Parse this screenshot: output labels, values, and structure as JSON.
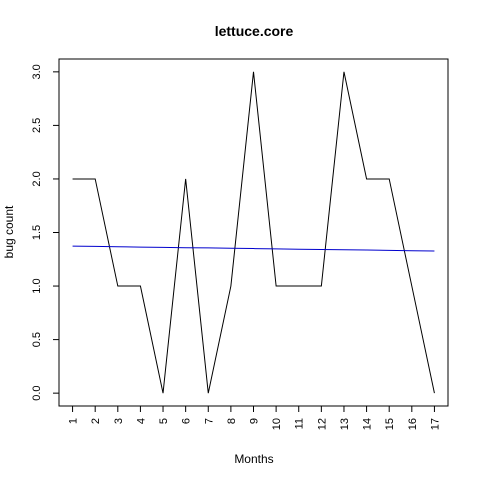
{
  "chart_data": {
    "type": "line",
    "title": "lettuce.core",
    "xlabel": "Months",
    "ylabel": "bug count",
    "x": [
      1,
      2,
      3,
      4,
      5,
      6,
      7,
      8,
      9,
      10,
      11,
      12,
      13,
      14,
      15,
      16,
      17
    ],
    "x_tick_labels": [
      "1",
      "2",
      "3",
      "4",
      "5",
      "6",
      "7",
      "8",
      "9",
      "10",
      "11",
      "12",
      "13",
      "14",
      "15",
      "16",
      "17"
    ],
    "y_tick_values": [
      0.0,
      0.5,
      1.0,
      1.5,
      2.0,
      2.5,
      3.0
    ],
    "y_tick_labels": [
      "0.0",
      "0.5",
      "1.0",
      "1.5",
      "2.0",
      "2.5",
      "3.0"
    ],
    "xlim": [
      0.4,
      17.6
    ],
    "ylim": [
      -0.12,
      3.12
    ],
    "grid": false,
    "legend": "none",
    "series": [
      {
        "color": "#000000",
        "values": [
          2,
          2,
          1,
          1,
          0,
          2,
          0,
          1,
          3,
          1,
          1,
          1,
          3,
          2,
          2,
          1,
          0
        ]
      },
      {
        "color": "#0000cd",
        "kind": "trend",
        "values": [
          1.373,
          1.37,
          1.367,
          1.364,
          1.361,
          1.358,
          1.356,
          1.353,
          1.35,
          1.347,
          1.344,
          1.341,
          1.339,
          1.336,
          1.333,
          1.33,
          1.327
        ]
      }
    ]
  }
}
